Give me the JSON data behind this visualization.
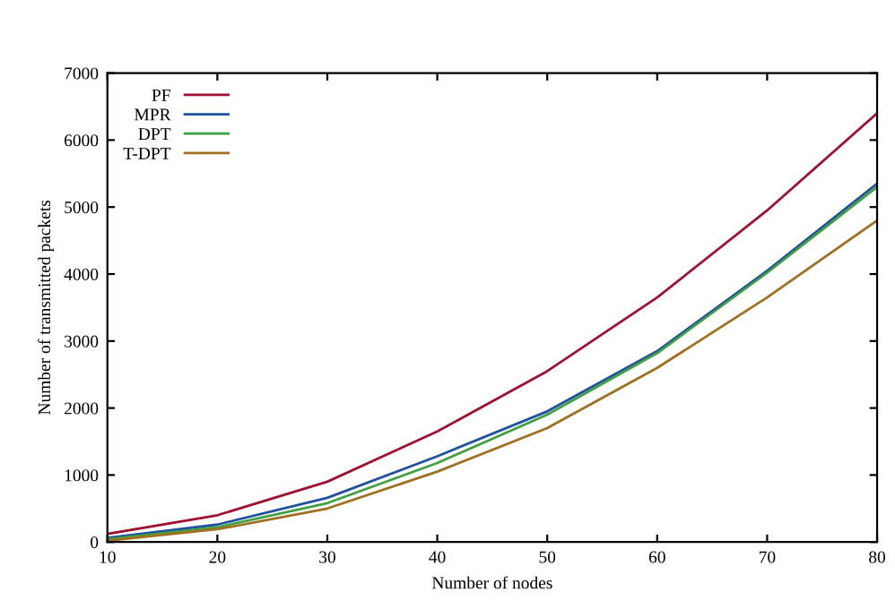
{
  "chart_data": {
    "type": "line",
    "xlabel": "Number of nodes",
    "ylabel": "Number of transmitted packets",
    "x": [
      10,
      20,
      30,
      40,
      50,
      60,
      70,
      80
    ],
    "series": [
      {
        "name": "PF",
        "color": "#a01030",
        "values": [
          120,
          400,
          900,
          1650,
          2550,
          3650,
          4950,
          6400
        ]
      },
      {
        "name": "MPR",
        "color": "#2050a0",
        "values": [
          60,
          260,
          660,
          1280,
          1950,
          2850,
          4050,
          5350
        ]
      },
      {
        "name": "DPT",
        "color": "#40a040",
        "values": [
          40,
          220,
          580,
          1180,
          1900,
          2820,
          4020,
          5300
        ]
      },
      {
        "name": "T-DPT",
        "color": "#a07020",
        "values": [
          20,
          190,
          500,
          1050,
          1700,
          2600,
          3650,
          4800
        ]
      }
    ],
    "xlim": [
      10,
      80
    ],
    "ylim": [
      0,
      7000
    ],
    "xticks": [
      10,
      20,
      30,
      40,
      50,
      60,
      70,
      80
    ],
    "yticks": [
      0,
      1000,
      2000,
      3000,
      4000,
      5000,
      6000,
      7000
    ],
    "grid": false,
    "legend": "top left",
    "marker": "none",
    "line_style": "solid"
  }
}
